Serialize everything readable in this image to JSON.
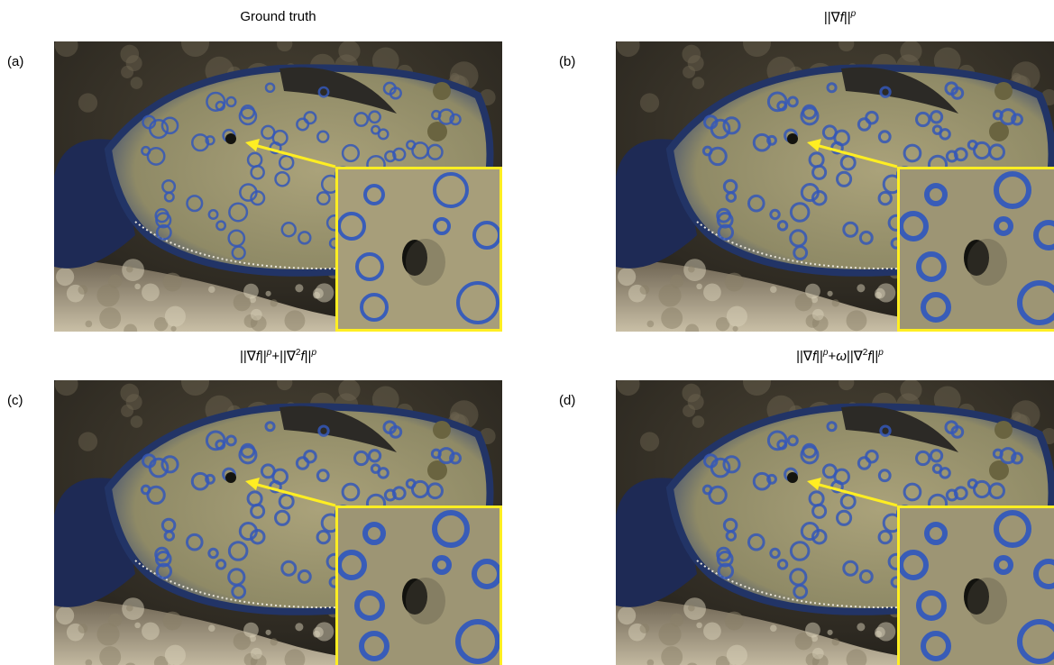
{
  "panels": [
    {
      "label": "(a)",
      "title": [
        {
          "text": "Ground truth",
          "style": "normal"
        }
      ]
    },
    {
      "label": "(b)",
      "title": [
        {
          "text": "||∇",
          "style": "normal"
        },
        {
          "text": "f",
          "style": "italic"
        },
        {
          "text": "||",
          "style": "normal"
        },
        {
          "text": "p",
          "style": "sup"
        }
      ]
    },
    {
      "label": "(c)",
      "title": [
        {
          "text": "||∇",
          "style": "normal"
        },
        {
          "text": "f",
          "style": "italic"
        },
        {
          "text": "||",
          "style": "normal"
        },
        {
          "text": "p",
          "style": "sup"
        },
        {
          "text": "+||∇",
          "style": "normal"
        },
        {
          "text": "2",
          "style": "sup-n"
        },
        {
          "text": "f",
          "style": "italic"
        },
        {
          "text": "||",
          "style": "normal"
        },
        {
          "text": "p",
          "style": "sup"
        }
      ]
    },
    {
      "label": "(d)",
      "title": [
        {
          "text": "||∇",
          "style": "normal"
        },
        {
          "text": "f",
          "style": "italic"
        },
        {
          "text": "||",
          "style": "normal"
        },
        {
          "text": "p",
          "style": "sup"
        },
        {
          "text": "+",
          "style": "normal"
        },
        {
          "text": "ω",
          "style": "italic"
        },
        {
          "text": "||∇",
          "style": "normal"
        },
        {
          "text": "2",
          "style": "sup-n"
        },
        {
          "text": "f",
          "style": "italic"
        },
        {
          "text": "||",
          "style": "normal"
        },
        {
          "text": "p",
          "style": "sup"
        }
      ]
    }
  ]
}
